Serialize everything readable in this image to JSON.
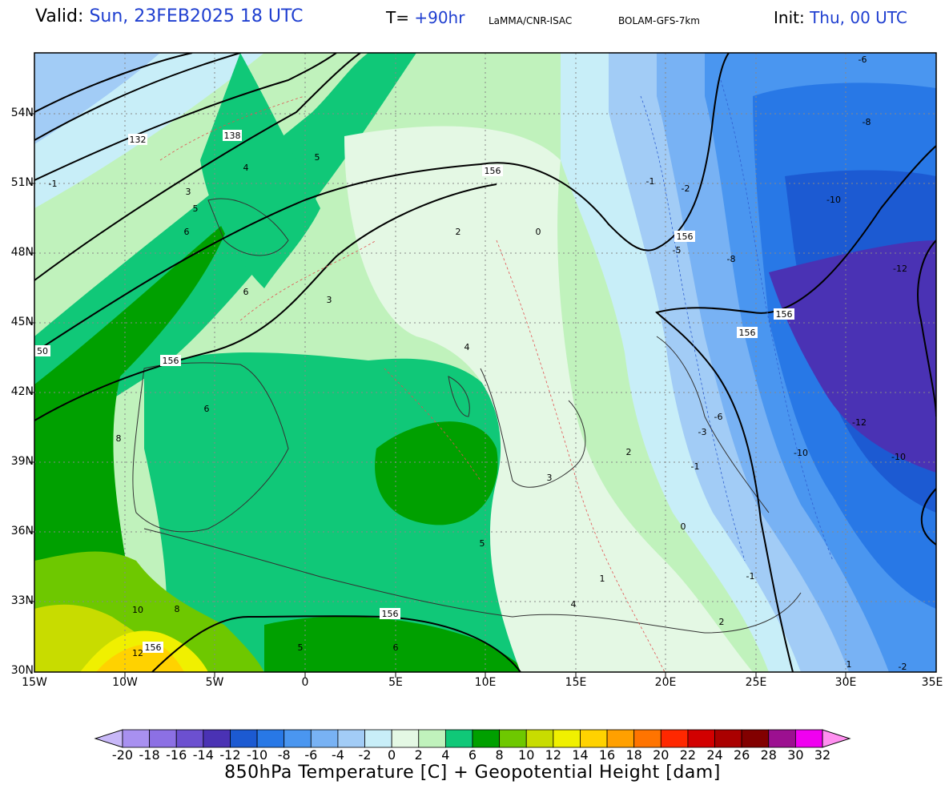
{
  "header": {
    "valid_label": "Valid:",
    "valid_value": "Sun, 23FEB2025   18 UTC",
    "t_label": "T=",
    "t_value": "+90hr",
    "credit": "LaMMA/CNR-ISAC",
    "model": "BOLAM-GFS-7km",
    "init_label": "Init:",
    "init_value": "Thu, 00 UTC"
  },
  "axes": {
    "y_ticks": [
      "54N",
      "51N",
      "48N",
      "45N",
      "42N",
      "39N",
      "36N",
      "33N",
      "30N"
    ],
    "x_ticks": [
      "15W",
      "10W",
      "5W",
      "0",
      "5E",
      "10E",
      "15E",
      "20E",
      "25E",
      "30E",
      "35E"
    ]
  },
  "colorbar": {
    "labels": [
      "-20",
      "-18",
      "-16",
      "-14",
      "-12",
      "-10",
      "-8",
      "-6",
      "-4",
      "-2",
      "0",
      "2",
      "4",
      "6",
      "8",
      "10",
      "12",
      "14",
      "16",
      "18",
      "20",
      "22",
      "24",
      "26",
      "28",
      "30",
      "32"
    ],
    "colors": [
      "#c8b8f8",
      "#a890f0",
      "#8c70e4",
      "#6c50d0",
      "#4a32b4",
      "#1c5ad2",
      "#2878e6",
      "#4a96f0",
      "#78b2f4",
      "#a2ccf6",
      "#c8eef8",
      "#e4f8e4",
      "#c0f2bc",
      "#10c878",
      "#00a000",
      "#6ec800",
      "#c8dc00",
      "#f0f000",
      "#ffd200",
      "#ffa000",
      "#ff7400",
      "#ff2800",
      "#d20000",
      "#aa0000",
      "#820000",
      "#9c1090",
      "#f000f0",
      "#ff90f0"
    ],
    "caption": "850hPa Temperature [C] + Geopotential Height [dam]"
  },
  "map": {
    "height_labels": [
      "132",
      "138",
      "156",
      "156",
      "156",
      "156",
      "156",
      "156",
      "156",
      "50"
    ],
    "temp_labels": [
      "-1",
      "3",
      "4",
      "5",
      "5",
      "6",
      "6",
      "6",
      "8",
      "8",
      "10",
      "12",
      "3",
      "2",
      "0",
      "-1",
      "-2",
      "-5",
      "-6",
      "-8",
      "-10",
      "-10",
      "-12",
      "-12",
      "-10",
      "-8",
      "-6",
      "-3",
      "-1",
      "1",
      "2",
      "3",
      "4",
      "5",
      "6",
      "5",
      "4",
      "2",
      "0",
      "-1",
      "1",
      "-2"
    ]
  }
}
